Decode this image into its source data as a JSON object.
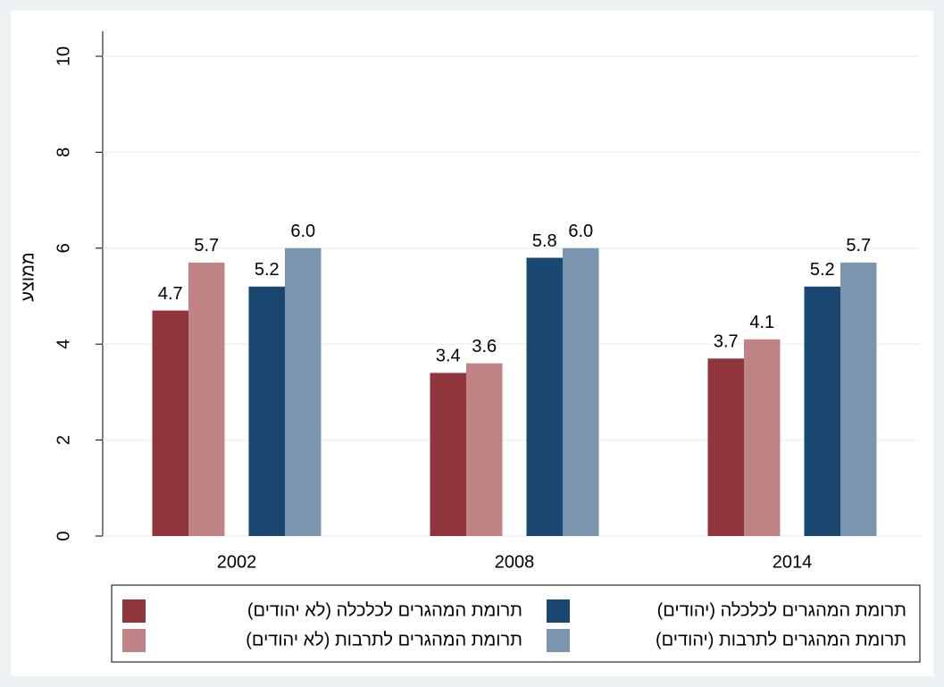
{
  "chart_data": {
    "type": "bar",
    "ylabel": "ממוצע",
    "categories": [
      "2002",
      "2008",
      "2014"
    ],
    "series": [
      {
        "name": "תרומת המהגרים לכלכלה (לא יהודים)",
        "color": "#90353b",
        "values": [
          4.7,
          3.4,
          3.7
        ],
        "value_labels": [
          "4.7",
          "3.4",
          "3.7"
        ]
      },
      {
        "name": "תרומת המהגרים לתרבות (לא יהודים)",
        "color": "#c08487",
        "values": [
          5.7,
          3.6,
          4.1
        ],
        "value_labels": [
          "5.7",
          "3.6",
          "4.1"
        ]
      },
      {
        "name": "תרומת המהגרים לכלכלה (יהודים)",
        "color": "#1a476f",
        "values": [
          5.2,
          5.8,
          5.2
        ],
        "value_labels": [
          "5.2",
          "5.8",
          "5.2"
        ]
      },
      {
        "name": "תרומת המהגרים לתרבות (יהודים)",
        "color": "#7b95ae",
        "values": [
          6,
          6,
          5.7
        ],
        "value_labels": [
          "6.0",
          "6.0",
          "5.7"
        ]
      }
    ],
    "ylim": [
      0,
      10
    ],
    "yticks": [
      0,
      2,
      4,
      6,
      8,
      10
    ],
    "grid": true,
    "legend": "bottom"
  }
}
